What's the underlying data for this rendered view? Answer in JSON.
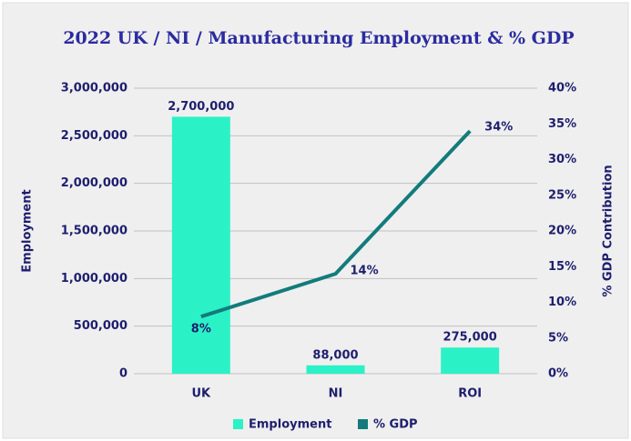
{
  "chart_data": {
    "type": "bar-line",
    "title": "2022 UK / NI / Manufacturing Employment & % GDP",
    "categories": [
      "UK",
      "NI",
      "ROI"
    ],
    "series": [
      {
        "name": "Employment",
        "type": "bar",
        "color": "#2af2c6",
        "values": [
          2700000,
          88000,
          275000
        ],
        "value_labels": [
          "2,700,000",
          "88,000",
          "275,000"
        ]
      },
      {
        "name": "% GDP",
        "type": "line",
        "axis": "y2",
        "color": "#137b7b",
        "values": [
          8,
          14,
          34
        ],
        "value_labels": [
          "8%",
          "14%",
          "34%"
        ]
      }
    ],
    "ylabel": "Employment",
    "y2label": "% GDP Contribution",
    "ylim": [
      0,
      3000000
    ],
    "yticks": [
      0,
      {
        "value": 500000,
        "label": "500,000"
      },
      {
        "value": 1000000,
        "label": "1,000,000"
      },
      {
        "value": 1500000,
        "label": "1,500,000"
      },
      {
        "value": 2000000,
        "label": "2,000,000"
      },
      {
        "value": 2500000,
        "label": "2,500,000"
      },
      {
        "value": 3000000,
        "label": "3,000,000"
      }
    ],
    "y2lim": [
      0,
      40
    ],
    "y2ticks": [
      {
        "value": 0,
        "label": "0%"
      },
      {
        "value": 5,
        "label": "5%"
      },
      {
        "value": 10,
        "label": "10%"
      },
      {
        "value": 15,
        "label": "15%"
      },
      {
        "value": 20,
        "label": "20%"
      },
      {
        "value": 25,
        "label": "25%"
      },
      {
        "value": 30,
        "label": "30%"
      },
      {
        "value": 35,
        "label": "35%"
      },
      {
        "value": 40,
        "label": "40%"
      }
    ],
    "grid": true,
    "legend": "bottom"
  }
}
